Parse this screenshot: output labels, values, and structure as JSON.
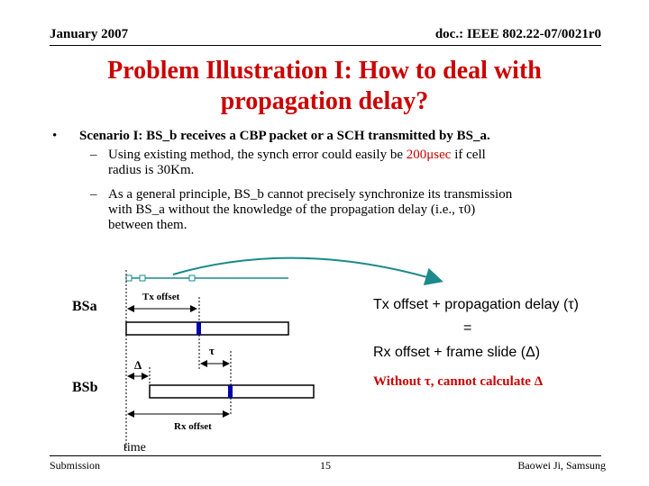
{
  "header": {
    "date": "January 2007",
    "doc_id": "doc.: IEEE 802.22-07/0021r0"
  },
  "title": {
    "line1": "Problem Illustration I: How to deal with",
    "line2": "propagation delay?"
  },
  "content": {
    "bullet_glyph": "•",
    "dash_glyph": "–",
    "scenario": "Scenario I: BS_b receives a CBP packet or a SCH transmitted by BS_a.",
    "sub1_pre": "Using existing method, the synch error could easily be ",
    "sub1_highlight": "200μsec",
    "sub1_post": " if cell",
    "sub1_line2": "radius is 30Km.",
    "sub2_line1": "As a general principle, BS_b cannot precisely synchronize its transmission",
    "sub2_line2": "with BS_a without the knowledge of the propagation delay (i.e., τ0)",
    "sub2_line3": "between them."
  },
  "diagram": {
    "bsa_label": "BSa",
    "bsb_label": "BSb",
    "tx_offset_label": "Tx offset",
    "rx_offset_label": "Rx offset",
    "tau_label": "τ",
    "delta_label": "Δ",
    "time_label": "time",
    "without_label": "Without τ, cannot calculate Δ",
    "formula_line1": "Tx offset + propagation delay (τ)",
    "formula_eq": "=",
    "formula_line2": "Rx offset + frame slide (Δ)",
    "colors": {
      "marker": "#0000aa",
      "arrow": "#1a8a8a",
      "emphasis": "#cc0000"
    }
  },
  "footer": {
    "left": "Submission",
    "page": "15",
    "author": "Baowei Ji, Samsung"
  }
}
